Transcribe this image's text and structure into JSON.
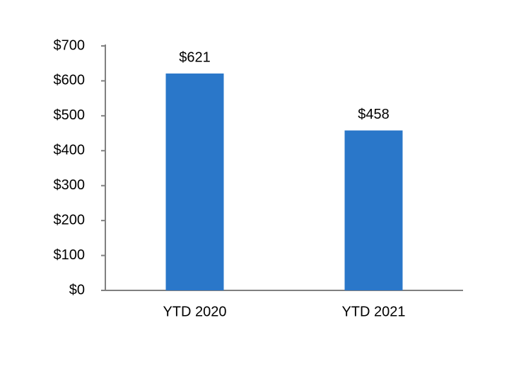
{
  "chart_data": {
    "type": "bar",
    "categories": [
      "YTD 2020",
      "YTD 2021"
    ],
    "values": [
      621,
      458
    ],
    "value_labels": [
      "$621",
      "$458"
    ],
    "color": "#2a77c9",
    "ylim": [
      0,
      700
    ],
    "yticks": [
      {
        "value": 0,
        "label": "$0"
      },
      {
        "value": 100,
        "label": "$100"
      },
      {
        "value": 200,
        "label": "$200"
      },
      {
        "value": 300,
        "label": "$300"
      },
      {
        "value": 400,
        "label": "$400"
      },
      {
        "value": 500,
        "label": "$500"
      },
      {
        "value": 600,
        "label": "$600"
      },
      {
        "value": 700,
        "label": "$700"
      }
    ],
    "grid": false
  }
}
